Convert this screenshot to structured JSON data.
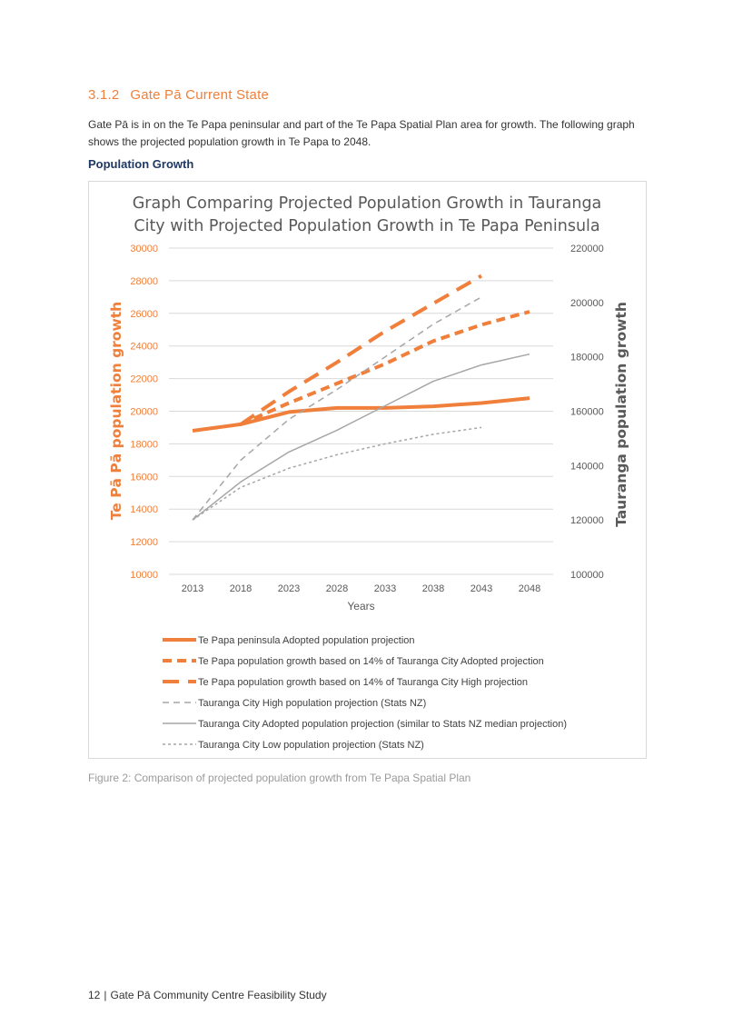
{
  "section": {
    "number": "3.1.2",
    "title": "Gate Pā Current State"
  },
  "paragraph": "Gate Pā is in on the Te Papa peninsular and part of the Te Papa Spatial Plan area for growth. The following graph shows the projected population growth in Te Papa to 2048.",
  "subheading": "Population Growth",
  "chart_data": {
    "type": "line",
    "title_lines": [
      "Graph Comparing Projected Population Growth in Tauranga",
      "City with Projected Population Growth in Te Papa  Peninsula"
    ],
    "xlabel": "Years",
    "ylabel_left": "Te  Pā  Pā   population growth",
    "ylabel_right": "Tauranga population growth",
    "x": [
      2013,
      2018,
      2023,
      2028,
      2033,
      2038,
      2043,
      2048
    ],
    "x_tick_labels": [
      "2013",
      "2018",
      "2023",
      "2028",
      "2033",
      "2038",
      "2043",
      "2048"
    ],
    "ylim_left": [
      10000,
      30000
    ],
    "ylim_right": [
      100000,
      220000
    ],
    "left_ticks": [
      "10000",
      "12000",
      "14000",
      "16000",
      "18000",
      "20000",
      "22000",
      "24000",
      "26000",
      "28000",
      "30000"
    ],
    "right_ticks": [
      "100000",
      "120000",
      "140000",
      "160000",
      "180000",
      "200000",
      "220000"
    ],
    "grid": true,
    "legend_position": "bottom",
    "colors": {
      "orange": "#ef7f3a",
      "gray": "#a6a6a6",
      "left_tick_text": "#ef7f3a",
      "right_tick_text": "#595959"
    },
    "series": [
      {
        "name": "Te Papa peninsula Adopted population projection",
        "axis": "left",
        "style": "solid-thick",
        "color": "#ef7f3a",
        "x": [
          2013,
          2018,
          2023,
          2028,
          2033,
          2038,
          2043,
          2048
        ],
        "values": [
          18800,
          19200,
          19950,
          20200,
          20200,
          20300,
          20500,
          20800
        ]
      },
      {
        "name": "Te Papa population growth based on 14% of Tauranga City Adopted projection",
        "axis": "left",
        "style": "dash-thick",
        "color": "#ef7f3a",
        "x": [
          2018,
          2023,
          2028,
          2033,
          2038,
          2043,
          2048
        ],
        "values": [
          19200,
          20500,
          21700,
          22900,
          24300,
          25300,
          26100
        ]
      },
      {
        "name": "Te Papa population growth based on 14% of Tauranga City High projection",
        "axis": "left",
        "style": "longdash-thick",
        "color": "#ef7f3a",
        "x": [
          2018,
          2023,
          2028,
          2033,
          2038,
          2043
        ],
        "values": [
          19200,
          21200,
          23000,
          24900,
          26600,
          28300
        ]
      },
      {
        "name": "Tauranga City High population projection (Stats NZ)",
        "axis": "right",
        "style": "dash-thin",
        "color": "#a6a6a6",
        "x": [
          2013,
          2018,
          2023,
          2028,
          2033,
          2038,
          2043
        ],
        "values": [
          120000,
          142000,
          157000,
          168000,
          180000,
          192000,
          202000
        ]
      },
      {
        "name": "Tauranga City Adopted population projection (similar to Stats NZ median projection)",
        "axis": "right",
        "style": "solid-thin",
        "color": "#a6a6a6",
        "x": [
          2013,
          2018,
          2023,
          2028,
          2033,
          2038,
          2043,
          2048
        ],
        "values": [
          120000,
          134000,
          145000,
          153000,
          162000,
          171000,
          177000,
          181000
        ]
      },
      {
        "name": "Tauranga City Low population projection (Stats NZ)",
        "axis": "right",
        "style": "dot-thin",
        "color": "#a6a6a6",
        "x": [
          2013,
          2018,
          2023,
          2028,
          2033,
          2038,
          2043
        ],
        "values": [
          120000,
          132000,
          139000,
          144000,
          148000,
          151500,
          154000
        ]
      }
    ]
  },
  "caption": "Figure 2: Comparison of projected population growth from Te Papa Spatial Plan",
  "footer": {
    "page": "12",
    "title": "Gate Pā Community Centre Feasibility Study"
  }
}
